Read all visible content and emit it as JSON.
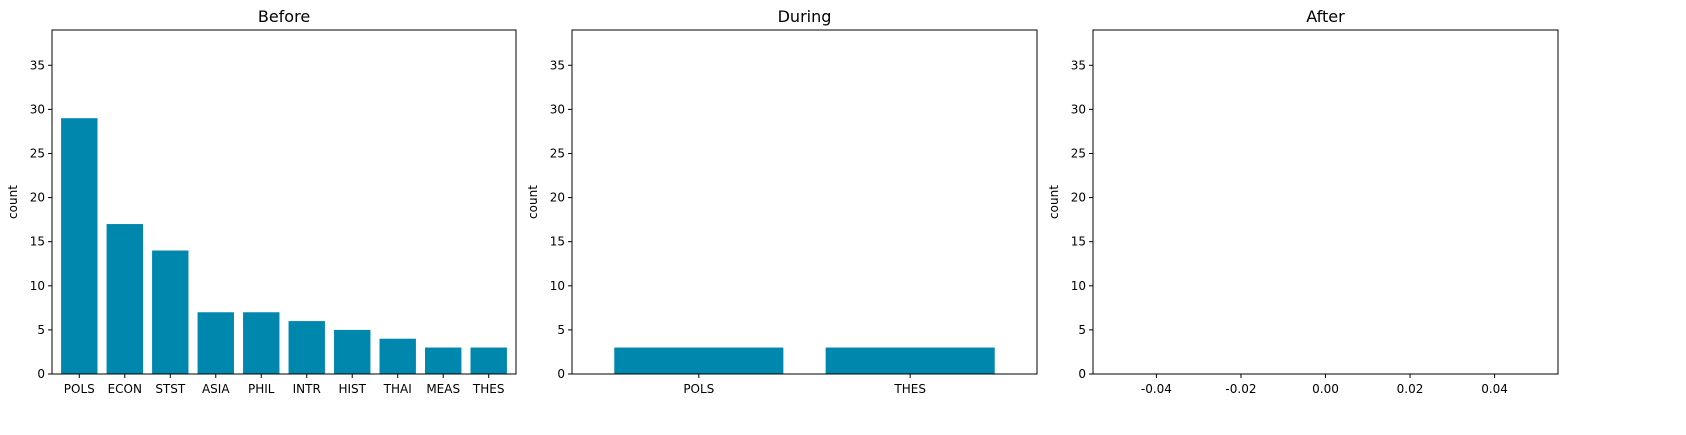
{
  "chart_data": [
    {
      "type": "bar",
      "title": "Before",
      "ylabel": "count",
      "categories": [
        "POLS",
        "ECON",
        "STST",
        "ASIA",
        "PHIL",
        "INTR",
        "HIST",
        "THAI",
        "MEAS",
        "THES"
      ],
      "values": [
        29,
        17,
        14,
        7,
        7,
        6,
        5,
        4,
        3,
        3
      ],
      "ylim": [
        0,
        39
      ],
      "yticks": [
        0,
        5,
        10,
        15,
        20,
        25,
        30,
        35
      ],
      "color": "#0087ad"
    },
    {
      "type": "bar",
      "title": "During",
      "ylabel": "count",
      "categories": [
        "POLS",
        "THES"
      ],
      "values": [
        3,
        3
      ],
      "ylim": [
        0,
        39
      ],
      "yticks": [
        0,
        5,
        10,
        15,
        20,
        25,
        30,
        35
      ],
      "color": "#0087ad"
    },
    {
      "type": "bar",
      "title": "After",
      "ylabel": "count",
      "categories": [],
      "values": [],
      "ylim": [
        0,
        39
      ],
      "yticks": [
        0,
        5,
        10,
        15,
        20,
        25,
        30,
        35
      ],
      "xlim": [
        -0.055,
        0.055
      ],
      "xticks": [
        "-0.04",
        "-0.02",
        "0.00",
        "0.02",
        "0.04"
      ],
      "xtick_values": [
        -0.04,
        -0.02,
        0.0,
        0.02,
        0.04
      ],
      "color": "#0087ad"
    }
  ]
}
